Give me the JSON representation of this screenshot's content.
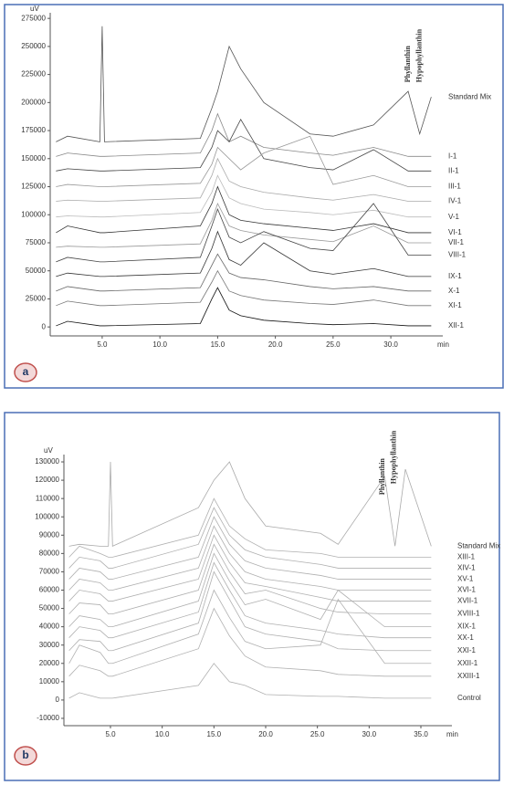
{
  "chart_data": [
    {
      "type": "line",
      "panel_label": "a",
      "y_label": "uV",
      "x_label": "min",
      "xlim": [
        0.5,
        34.5
      ],
      "ylim": [
        -8000,
        280000
      ],
      "xticks": [
        {
          "value": 5,
          "label": "5.0"
        },
        {
          "value": 10,
          "label": "10.0"
        },
        {
          "value": 15,
          "label": "15.0"
        },
        {
          "value": 20,
          "label": "20.0"
        },
        {
          "value": 25,
          "label": "25.0"
        },
        {
          "value": 30,
          "label": "30.0"
        }
      ],
      "yticks": [
        0,
        25000,
        50000,
        75000,
        100000,
        125000,
        150000,
        175000,
        200000,
        225000,
        250000,
        275000
      ],
      "annotations": [
        {
          "text": "Phyllanthin",
          "x": 31.5,
          "y": 218000
        },
        {
          "text": "Hypophyllanthin",
          "x": 32.5,
          "y": 218000
        }
      ],
      "x": [
        1,
        2,
        4.8,
        5,
        5.2,
        13.5,
        14.5,
        15,
        16,
        17,
        19,
        23,
        25,
        28.5,
        31.5,
        32.5,
        33.5
      ],
      "series": [
        {
          "name": "Standard Mix",
          "color": "#555555",
          "values": [
            165000,
            170000,
            165000,
            268000,
            165000,
            168000,
            195000,
            210000,
            250000,
            230000,
            200000,
            172000,
            170000,
            180000,
            210000,
            172000,
            205000
          ]
        },
        {
          "name": "I-1",
          "color": "#888888",
          "values": [
            152000,
            155000,
            152000,
            152000,
            152000,
            155000,
            175000,
            190000,
            165000,
            170000,
            160000,
            155000,
            153000,
            160000,
            152000,
            152000,
            152000
          ]
        },
        {
          "name": "II-1",
          "color": "#444444",
          "values": [
            139000,
            141000,
            139000,
            139000,
            139000,
            142000,
            160000,
            175000,
            165000,
            185000,
            150000,
            142000,
            140000,
            158000,
            139000,
            139000,
            139000
          ]
        },
        {
          "name": "III-1",
          "color": "#999999",
          "values": [
            125000,
            127000,
            125000,
            125000,
            125000,
            128000,
            145000,
            160000,
            150000,
            140000,
            155000,
            170000,
            127000,
            135000,
            125000,
            125000,
            125000
          ]
        },
        {
          "name": "IV-1",
          "color": "#aaaaaa",
          "values": [
            112000,
            113000,
            112000,
            112000,
            112000,
            115000,
            135000,
            150000,
            130000,
            125000,
            120000,
            115000,
            113000,
            118000,
            112000,
            112000,
            112000
          ]
        },
        {
          "name": "V-1",
          "color": "#bbbbbb",
          "values": [
            98000,
            99000,
            98000,
            98000,
            98000,
            102000,
            120000,
            135000,
            115000,
            110000,
            105000,
            102000,
            100000,
            104000,
            98000,
            98000,
            98000
          ]
        },
        {
          "name": "VI-1",
          "color": "#333333",
          "values": [
            84000,
            90000,
            84000,
            84000,
            84000,
            90000,
            110000,
            125000,
            100000,
            95000,
            92000,
            88000,
            86000,
            92000,
            84000,
            84000,
            84000
          ]
        },
        {
          "name": "VII-1",
          "color": "#999999",
          "values": [
            71000,
            72000,
            71000,
            71000,
            71000,
            74000,
            95000,
            110000,
            90000,
            86000,
            82000,
            78000,
            76000,
            90000,
            75000,
            75000,
            75000
          ]
        },
        {
          "name": "VIII-1",
          "color": "#444444",
          "values": [
            58000,
            62000,
            58000,
            58000,
            58000,
            62000,
            90000,
            105000,
            80000,
            75000,
            85000,
            70000,
            68000,
            110000,
            64000,
            64000,
            64000
          ]
        },
        {
          "name": "IX-1",
          "color": "#333333",
          "values": [
            45000,
            48000,
            45000,
            45000,
            45000,
            48000,
            70000,
            85000,
            60000,
            55000,
            75000,
            50000,
            47000,
            52000,
            45000,
            45000,
            45000
          ]
        },
        {
          "name": "X-1",
          "color": "#666666",
          "values": [
            32000,
            36000,
            32000,
            32000,
            32000,
            35000,
            55000,
            65000,
            48000,
            44000,
            42000,
            36000,
            34000,
            36000,
            32000,
            32000,
            32000
          ]
        },
        {
          "name": "XI-1",
          "color": "#777777",
          "values": [
            19000,
            23000,
            19000,
            19000,
            19000,
            22000,
            40000,
            50000,
            32000,
            28000,
            24000,
            21000,
            20000,
            24000,
            19000,
            19000,
            19000
          ]
        },
        {
          "name": "XII-1",
          "color": "#111111",
          "values": [
            1000,
            5000,
            1000,
            1000,
            1000,
            3000,
            25000,
            35000,
            15000,
            10000,
            6000,
            3000,
            2000,
            3000,
            1000,
            1000,
            1000
          ]
        }
      ]
    },
    {
      "type": "line",
      "panel_label": "b",
      "y_label": "uV",
      "x_label": "min",
      "xlim": [
        0.5,
        38
      ],
      "ylim": [
        -14000,
        134000
      ],
      "xticks": [
        {
          "value": 5,
          "label": "5.0"
        },
        {
          "value": 10,
          "label": "10.0"
        },
        {
          "value": 15,
          "label": "15.0"
        },
        {
          "value": 20,
          "label": "20.0"
        },
        {
          "value": 25,
          "label": "25.0"
        },
        {
          "value": 30,
          "label": "30.0"
        },
        {
          "value": 35,
          "label": "35.0"
        }
      ],
      "yticks": [
        -10000,
        0,
        10000,
        20000,
        30000,
        40000,
        50000,
        60000,
        70000,
        80000,
        90000,
        100000,
        110000,
        120000,
        130000
      ],
      "annotations": [
        {
          "text": "Phyllanthin",
          "x": 31.3,
          "y": 112000
        },
        {
          "text": "Hypophyllanthin",
          "x": 32.4,
          "y": 118000
        }
      ],
      "x": [
        1,
        2,
        4,
        4.8,
        5,
        5.2,
        13.5,
        15,
        16.5,
        18,
        20,
        25.3,
        27,
        31.5,
        32.5,
        33.5,
        36
      ],
      "series": [
        {
          "name": "Standard Mix",
          "color": "#aaaaaa",
          "values": [
            84000,
            85000,
            84000,
            84000,
            130000,
            84000,
            105000,
            120000,
            130000,
            110000,
            95000,
            91000,
            85000,
            122000,
            84000,
            126000,
            84000
          ]
        },
        {
          "name": "XIII-1",
          "color": "#b0b0b0",
          "values": [
            78000,
            84000,
            80000,
            78000,
            78000,
            78000,
            90000,
            110000,
            95000,
            88000,
            82000,
            80000,
            78000,
            78000,
            78000,
            78000,
            78000
          ]
        },
        {
          "name": "XIV-1",
          "color": "#b0b0b0",
          "values": [
            72000,
            78000,
            76000,
            72000,
            72000,
            72000,
            85000,
            105000,
            90000,
            82000,
            78000,
            74000,
            72000,
            72000,
            72000,
            72000,
            72000
          ]
        },
        {
          "name": "XV-1",
          "color": "#b0b0b0",
          "values": [
            66000,
            72000,
            70000,
            66000,
            66000,
            66000,
            78000,
            100000,
            85000,
            76000,
            72000,
            68000,
            66000,
            66000,
            66000,
            66000,
            66000
          ]
        },
        {
          "name": "XVI-1",
          "color": "#b0b0b0",
          "values": [
            60000,
            66000,
            64000,
            60000,
            60000,
            60000,
            72000,
            95000,
            80000,
            70000,
            66000,
            62000,
            60000,
            60000,
            60000,
            60000,
            60000
          ]
        },
        {
          "name": "XVII-1",
          "color": "#b0b0b0",
          "values": [
            54000,
            60000,
            58000,
            54000,
            54000,
            54000,
            66000,
            90000,
            75000,
            64000,
            62000,
            56000,
            54000,
            54000,
            54000,
            54000,
            54000
          ]
        },
        {
          "name": "XVIII-1",
          "color": "#b0b0b0",
          "values": [
            47000,
            53000,
            52000,
            47000,
            47000,
            47000,
            60000,
            85000,
            70000,
            58000,
            60000,
            50000,
            48000,
            47000,
            47000,
            47000,
            47000
          ]
        },
        {
          "name": "XIX-1",
          "color": "#b0b0b0",
          "values": [
            40000,
            46000,
            44000,
            40000,
            40000,
            40000,
            54000,
            80000,
            65000,
            52000,
            55000,
            44000,
            60000,
            40000,
            40000,
            40000,
            40000
          ]
        },
        {
          "name": "XX-1",
          "color": "#b0b0b0",
          "values": [
            34000,
            40000,
            38000,
            34000,
            34000,
            34000,
            48000,
            75000,
            60000,
            46000,
            42000,
            38000,
            36000,
            34000,
            34000,
            34000,
            34000
          ]
        },
        {
          "name": "XXI-1",
          "color": "#b0b0b0",
          "values": [
            27000,
            33000,
            32000,
            27000,
            27000,
            27000,
            42000,
            70000,
            55000,
            40000,
            36000,
            32000,
            28000,
            27000,
            27000,
            27000,
            27000
          ]
        },
        {
          "name": "XXII-1",
          "color": "#b0b0b0",
          "values": [
            20000,
            30000,
            26000,
            20000,
            20000,
            20000,
            36000,
            60000,
            45000,
            32000,
            28000,
            30000,
            55000,
            20000,
            20000,
            20000,
            20000
          ]
        },
        {
          "name": "XXIII-1",
          "color": "#b0b0b0",
          "values": [
            13000,
            19000,
            16000,
            13000,
            13000,
            13000,
            28000,
            50000,
            35000,
            24000,
            18000,
            16000,
            14000,
            13000,
            13000,
            13000,
            13000
          ]
        },
        {
          "name": "Control",
          "color": "#b0b0b0",
          "values": [
            1000,
            4000,
            1000,
            1000,
            1000,
            1000,
            8000,
            20000,
            10000,
            8000,
            3000,
            2000,
            2000,
            1000,
            1000,
            1000,
            1000
          ]
        }
      ]
    }
  ]
}
